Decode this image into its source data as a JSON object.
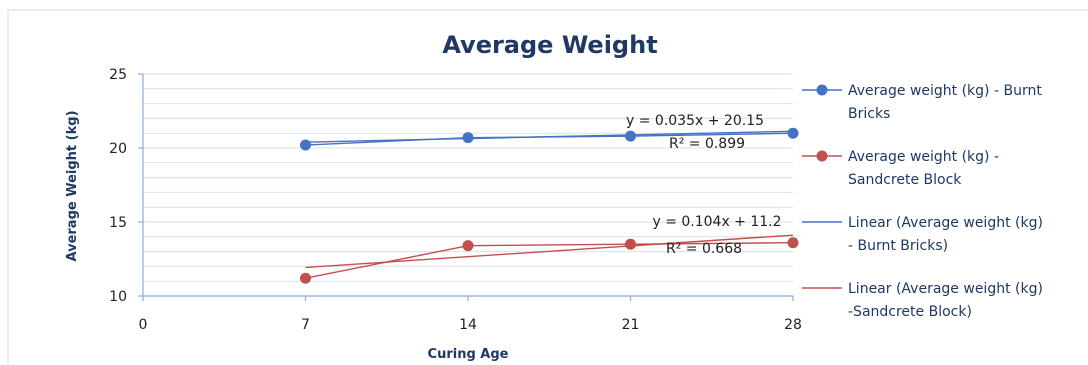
{
  "chart_data": {
    "type": "line",
    "title": "Average Weight",
    "xlabel": "Curing Age",
    "ylabel": "Average Weight (kg)",
    "xlim": [
      0,
      28
    ],
    "ylim": [
      10,
      25
    ],
    "x_ticks": [
      "0",
      "7",
      "14",
      "21",
      "28"
    ],
    "y_ticks": [
      "10",
      "15",
      "20",
      "25"
    ],
    "x": [
      7,
      14,
      21,
      28
    ],
    "series": [
      {
        "name_lines": [
          "Average weight (kg) - Burnt",
          "Bricks"
        ],
        "values": [
          20.2,
          20.7,
          20.8,
          21.0
        ],
        "color": "#4472c4",
        "trendline": {
          "name_lines": [
            "Linear (Average weight (kg)",
            "- Burnt Bricks)"
          ],
          "slope": 0.035,
          "intercept": 20.15,
          "equation": "y = 0.035x + 20.15",
          "r2": "R² = 0.899",
          "color": "#4472c4"
        }
      },
      {
        "name_lines": [
          "Average weight (kg) -",
          "Sandcrete Block"
        ],
        "values": [
          11.2,
          13.4,
          13.5,
          13.6
        ],
        "color": "#c0504d",
        "trendline": {
          "name_lines": [
            "Linear (Average weight (kg)",
            "-Sandcrete Block)"
          ],
          "slope": 0.104,
          "intercept": 11.2,
          "equation": "y = 0.104x + 11.2",
          "r2": "R² = 0.668",
          "color": "#c0504d"
        }
      }
    ],
    "grid": true,
    "legend": "right"
  }
}
